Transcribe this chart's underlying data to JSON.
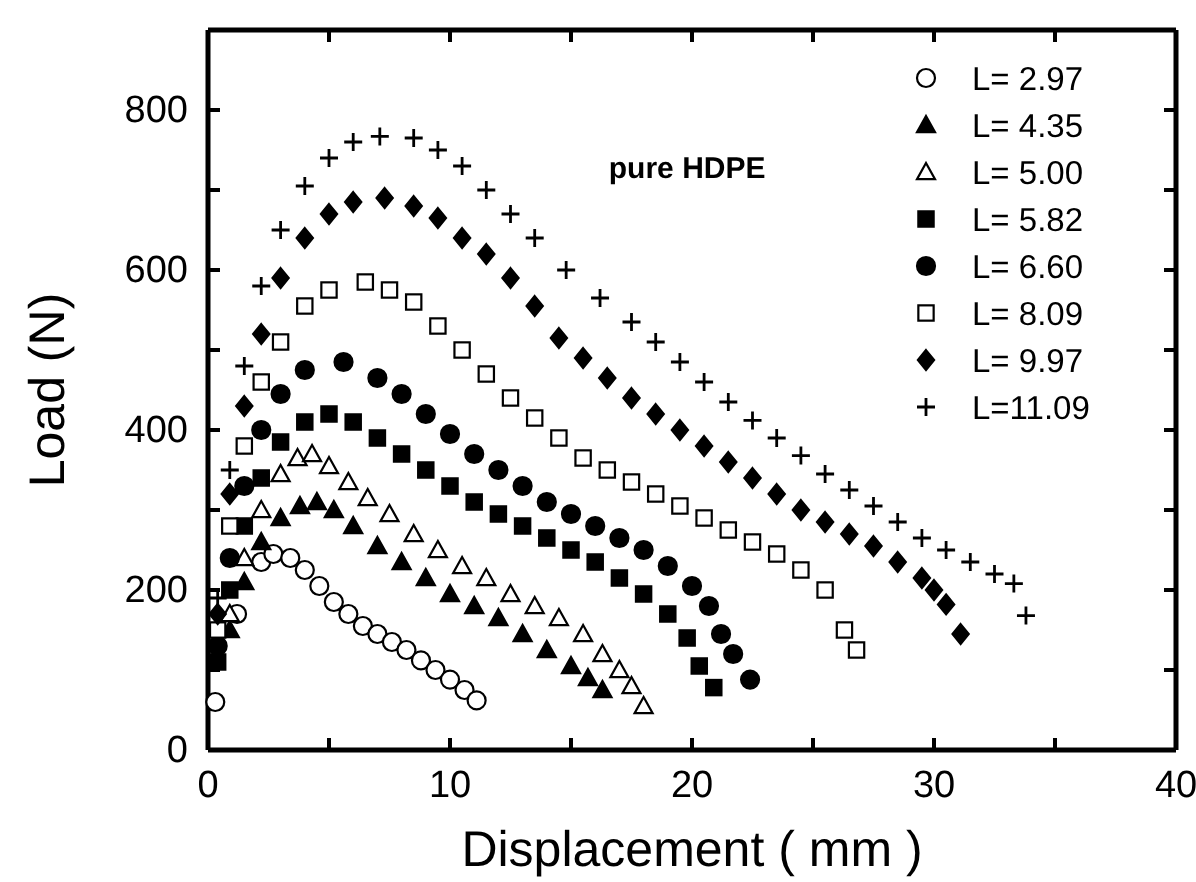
{
  "chart_data": {
    "type": "scatter",
    "xlabel": "Displacement ( mm )",
    "ylabel": "Load (N)",
    "annotations": [
      "pure HDPE"
    ],
    "xlim": [
      0,
      40
    ],
    "ylim": [
      0,
      900
    ],
    "xticks": [
      0,
      {
        "value": 5,
        "label": null
      },
      10,
      {
        "value": 15,
        "label": null
      },
      20,
      {
        "value": 25,
        "label": null
      },
      30,
      {
        "value": 35,
        "label": null
      },
      40
    ],
    "yticks": [
      0,
      {
        "value": 100,
        "label": null
      },
      200,
      {
        "value": 300,
        "label": null
      },
      400,
      {
        "value": 500,
        "label": null
      },
      600,
      {
        "value": 700,
        "label": null
      },
      800
    ],
    "legend": "top right",
    "grid": false,
    "series": [
      {
        "name": "L= 2.97",
        "color": "#ffffff",
        "marker": "circle",
        "x": [
          0.3,
          1.2,
          2.2,
          2.7,
          3.4,
          4.0,
          4.6,
          5.2,
          5.8,
          6.4,
          7.0,
          7.6,
          8.2,
          8.8,
          9.4,
          10.0,
          10.6,
          11.1
        ],
        "values": [
          60,
          170,
          235,
          245,
          240,
          225,
          205,
          185,
          170,
          155,
          145,
          135,
          125,
          112,
          100,
          88,
          75,
          62
        ]
      },
      {
        "name": "L= 4.35",
        "color": "#000000",
        "marker": "triangle",
        "x": [
          0.9,
          1.5,
          2.2,
          3.0,
          3.8,
          4.5,
          5.2,
          6.0,
          7.0,
          8.0,
          9.0,
          10.0,
          11.0,
          12.0,
          13.0,
          14.0,
          15.0,
          15.7,
          16.3
        ],
        "values": [
          150,
          210,
          260,
          290,
          305,
          310,
          300,
          280,
          255,
          235,
          215,
          195,
          180,
          165,
          145,
          125,
          105,
          90,
          75
        ]
      },
      {
        "name": "L= 5.00",
        "color": "#ffffff",
        "marker": "triangle",
        "x": [
          0.9,
          1.5,
          2.2,
          3.0,
          3.7,
          4.3,
          5.0,
          5.8,
          6.6,
          7.5,
          8.5,
          9.5,
          10.5,
          11.5,
          12.5,
          13.5,
          14.5,
          15.5,
          16.3,
          17.0,
          17.5,
          18.0
        ],
        "values": [
          170,
          240,
          300,
          345,
          365,
          370,
          355,
          335,
          315,
          295,
          270,
          250,
          230,
          215,
          195,
          180,
          165,
          145,
          120,
          100,
          80,
          55
        ]
      },
      {
        "name": "L= 5.82",
        "color": "#000000",
        "marker": "square",
        "x": [
          0.4,
          0.9,
          1.5,
          2.2,
          3.0,
          4.0,
          5.0,
          6.0,
          7.0,
          8.0,
          9.0,
          10.0,
          11.0,
          12.0,
          13.0,
          14.0,
          15.0,
          16.0,
          17.0,
          18.0,
          19.0,
          19.8,
          20.3,
          20.9
        ],
        "values": [
          110,
          200,
          280,
          340,
          385,
          410,
          420,
          410,
          390,
          370,
          350,
          330,
          310,
          295,
          280,
          265,
          250,
          235,
          215,
          195,
          170,
          140,
          105,
          78
        ]
      },
      {
        "name": "L= 6.60",
        "color": "#000000",
        "marker": "circle",
        "x": [
          0.4,
          0.9,
          1.5,
          2.2,
          3.0,
          4.0,
          5.6,
          7.0,
          8.0,
          9.0,
          10.0,
          11.0,
          12.0,
          13.0,
          14.0,
          15.0,
          16.0,
          17.0,
          18.0,
          19.0,
          20.0,
          20.7,
          21.2,
          21.7,
          22.4
        ],
        "values": [
          130,
          240,
          330,
          400,
          445,
          475,
          485,
          465,
          445,
          420,
          395,
          370,
          350,
          330,
          310,
          295,
          280,
          265,
          250,
          230,
          205,
          180,
          145,
          120,
          88
        ]
      },
      {
        "name": "L= 8.09",
        "color": "#ffffff",
        "marker": "square",
        "x": [
          0.4,
          0.9,
          1.5,
          2.2,
          3.0,
          4.0,
          5.0,
          6.5,
          7.5,
          8.5,
          9.5,
          10.5,
          11.5,
          12.5,
          13.5,
          14.5,
          15.5,
          16.5,
          17.5,
          18.5,
          19.5,
          20.5,
          21.5,
          22.5,
          23.5,
          24.5,
          25.5,
          26.3,
          26.8
        ],
        "values": [
          150,
          280,
          380,
          460,
          510,
          555,
          575,
          585,
          575,
          560,
          530,
          500,
          470,
          440,
          415,
          390,
          365,
          350,
          335,
          320,
          305,
          290,
          275,
          260,
          245,
          225,
          200,
          150,
          125
        ]
      },
      {
        "name": "L= 9.97",
        "color": "#000000",
        "marker": "diamond",
        "x": [
          0.4,
          0.9,
          1.5,
          2.2,
          3.0,
          4.0,
          5.0,
          6.0,
          7.3,
          8.5,
          9.5,
          10.5,
          11.5,
          12.5,
          13.5,
          14.5,
          15.5,
          16.5,
          17.5,
          18.5,
          19.5,
          20.5,
          21.5,
          22.5,
          23.5,
          24.5,
          25.5,
          26.5,
          27.5,
          28.5,
          29.5,
          30.0,
          30.5,
          31.1
        ],
        "values": [
          170,
          320,
          430,
          520,
          590,
          640,
          670,
          685,
          690,
          680,
          665,
          640,
          620,
          590,
          555,
          515,
          490,
          465,
          440,
          420,
          400,
          380,
          360,
          340,
          320,
          300,
          285,
          270,
          255,
          235,
          215,
          200,
          182,
          145
        ]
      },
      {
        "name": "L=11.09",
        "color": "#000000",
        "marker": "cross",
        "x": [
          0.4,
          0.9,
          1.5,
          2.2,
          3.0,
          4.0,
          5.0,
          6.0,
          7.1,
          8.5,
          9.5,
          10.5,
          11.5,
          12.5,
          13.5,
          14.8,
          16.2,
          17.5,
          18.5,
          19.5,
          20.5,
          21.5,
          22.5,
          23.5,
          24.5,
          25.5,
          26.5,
          27.5,
          28.5,
          29.5,
          30.5,
          31.5,
          32.5,
          33.3,
          33.8
        ],
        "values": [
          190,
          350,
          480,
          580,
          650,
          705,
          740,
          760,
          767,
          765,
          750,
          730,
          700,
          670,
          640,
          600,
          565,
          535,
          510,
          485,
          460,
          435,
          412,
          390,
          368,
          345,
          325,
          305,
          285,
          265,
          250,
          235,
          220,
          208,
          168
        ]
      }
    ]
  }
}
